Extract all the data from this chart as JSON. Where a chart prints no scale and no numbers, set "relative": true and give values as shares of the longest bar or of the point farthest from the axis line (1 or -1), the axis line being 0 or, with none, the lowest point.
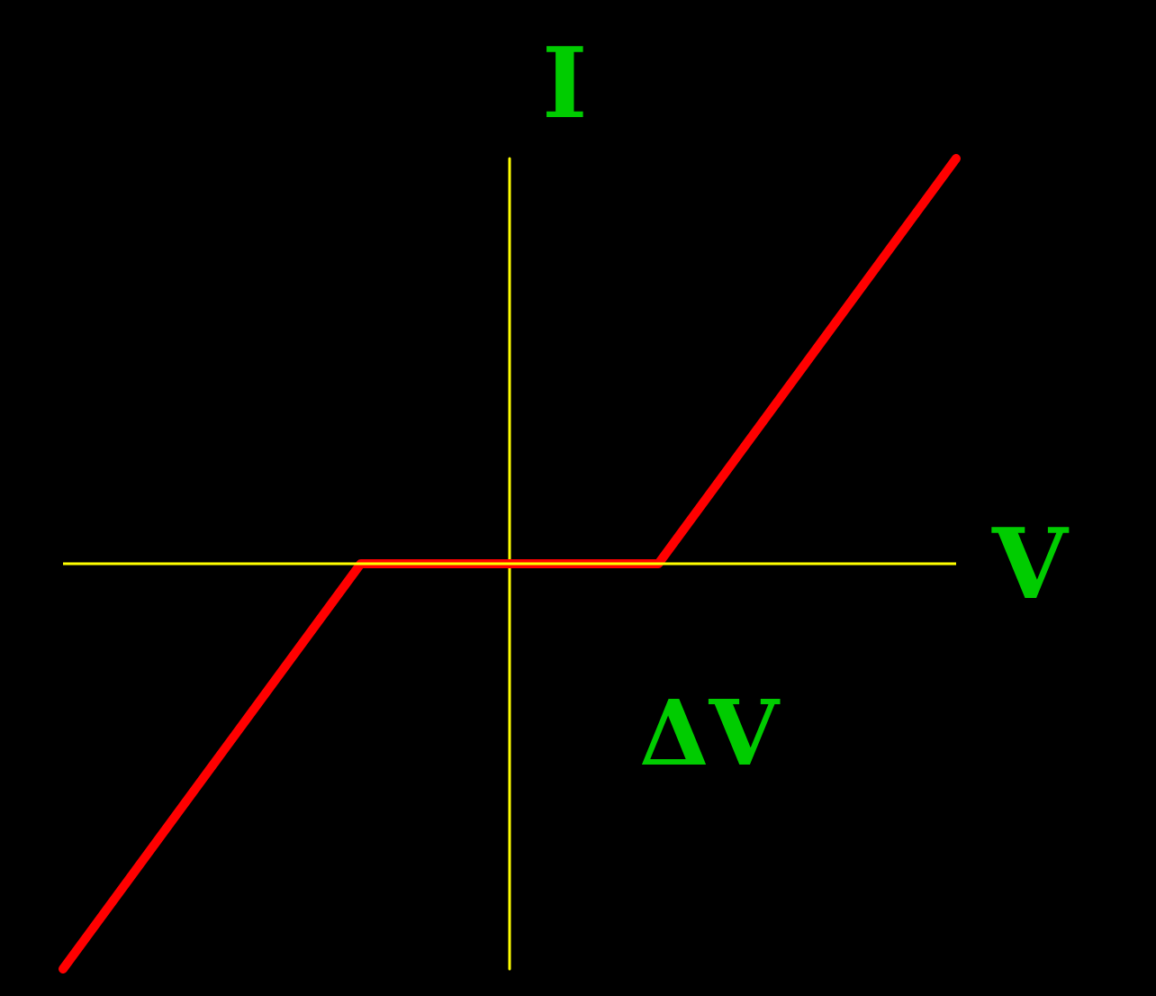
{
  "chart_data": {
    "type": "line",
    "relative": true,
    "xlabel": "V",
    "ylabel": "I",
    "annotations": [
      "ΔV"
    ],
    "categories": [
      null,
      null,
      null,
      null,
      null,
      null,
      null
    ],
    "series": [
      {
        "color": "#ff0000",
        "values": [
          -1,
          -0.5,
          0,
          0,
          0,
          0.5,
          1
        ]
      }
    ],
    "ref_lines": [
      {
        "axis": "y",
        "value": 0,
        "color": "#ffff00"
      }
    ],
    "grid": false,
    "marker": "none",
    "line_style": "solid",
    "tick_labels": false
  }
}
